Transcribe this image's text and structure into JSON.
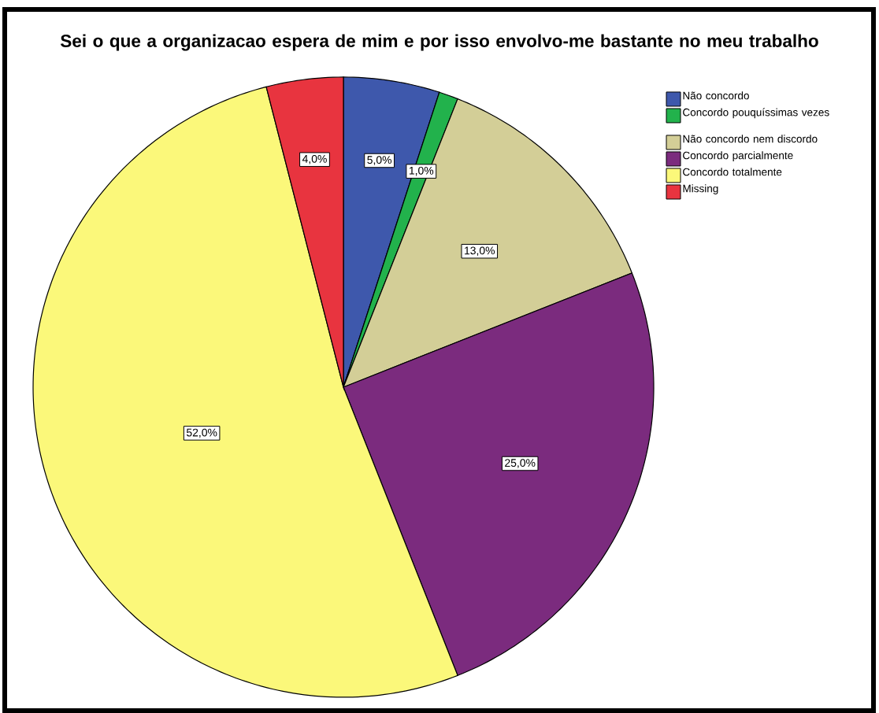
{
  "chart_data": {
    "type": "pie",
    "title": "Sei o que a organizacao espera de mim e por isso envolvo-me bastante no meu trabalho",
    "categories": [
      "Não concordo",
      "Concordo pouquíssimas vezes",
      "Não concordo nem discordo",
      "Concordo parcialmente",
      "Concordo totalmente",
      "Missing"
    ],
    "values": [
      5,
      1,
      13,
      25,
      52,
      4
    ],
    "value_labels": [
      "5,0%",
      "1,0%",
      "13,0%",
      "25,0%",
      "52,0%",
      "4,0%"
    ],
    "colors": [
      "#3e58ac",
      "#22b24c",
      "#d3ce97",
      "#7b2b7e",
      "#fbf87a",
      "#e8343f"
    ],
    "legend": "top right"
  }
}
